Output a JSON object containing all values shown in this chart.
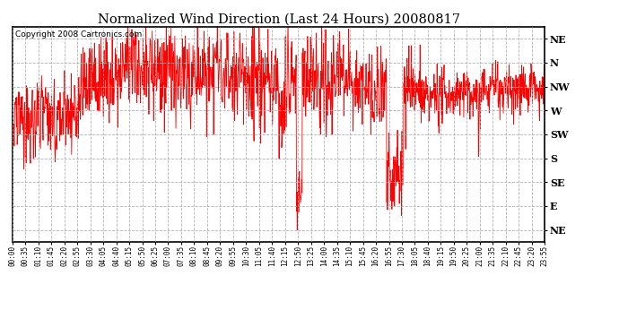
{
  "title": "Normalized Wind Direction (Last 24 Hours) 20080817",
  "copyright_text": "Copyright 2008 Cartronics.com",
  "line_color": "#FF0000",
  "background_color": "#FFFFFF",
  "plot_bg_color": "#FFFFFF",
  "grid_color": "#AAAAAA",
  "ytick_labels": [
    "NE",
    "N",
    "NW",
    "W",
    "SW",
    "S",
    "SE",
    "E",
    "NE"
  ],
  "ytick_values": [
    9,
    8,
    7,
    6,
    5,
    4,
    3,
    2,
    1
  ],
  "ylim": [
    0.5,
    9.5
  ],
  "xtick_labels": [
    "00:00",
    "00:35",
    "01:10",
    "01:45",
    "02:20",
    "02:55",
    "03:30",
    "04:05",
    "04:40",
    "05:15",
    "05:50",
    "06:25",
    "07:00",
    "07:35",
    "08:10",
    "08:45",
    "09:20",
    "09:55",
    "10:30",
    "11:05",
    "11:40",
    "12:15",
    "12:50",
    "13:25",
    "14:00",
    "14:35",
    "15:10",
    "15:45",
    "16:20",
    "16:55",
    "17:30",
    "18:05",
    "18:40",
    "19:15",
    "19:50",
    "20:25",
    "21:00",
    "21:35",
    "22:10",
    "22:45",
    "23:20",
    "23:55"
  ],
  "num_points": 1440,
  "seed": 42
}
